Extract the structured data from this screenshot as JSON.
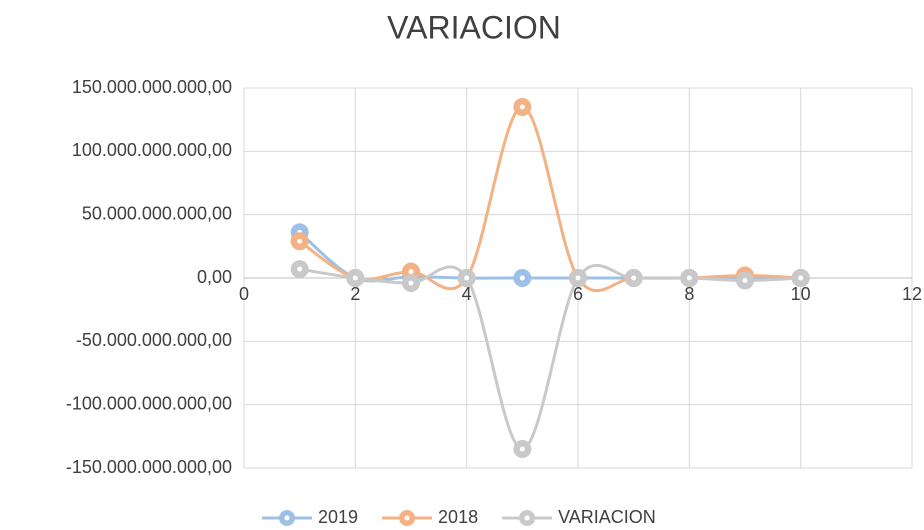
{
  "chart_data": {
    "type": "scatter",
    "title": "VARIACION",
    "smooth": true,
    "grid": true,
    "legend": "bottom",
    "xlim": [
      0,
      12
    ],
    "xticks": [
      0,
      2,
      4,
      6,
      8,
      10,
      12
    ],
    "ylim": [
      -150000000000,
      150000000000
    ],
    "yticks": [
      {
        "value": -150000000000,
        "label": "-150.000.000.000,00"
      },
      {
        "value": -100000000000,
        "label": "-100.000.000.000,00"
      },
      {
        "value": -50000000000,
        "label": "-50.000.000.000,00"
      },
      {
        "value": 0,
        "label": "0,00"
      },
      {
        "value": 50000000000,
        "label": "50.000.000.000,00"
      },
      {
        "value": 100000000000,
        "label": "100.000.000.000,00"
      },
      {
        "value": 150000000000,
        "label": "150.000.000.000,00"
      }
    ],
    "x": [
      1,
      2,
      3,
      4,
      5,
      6,
      7,
      8,
      9,
      10
    ],
    "series": [
      {
        "name": "2019",
        "color": "#9dc1e6",
        "values": [
          36000000000,
          0,
          1000000000,
          0,
          0,
          0,
          0,
          0,
          0,
          0
        ]
      },
      {
        "name": "2018",
        "color": "#f4b183",
        "values": [
          29000000000,
          0,
          5000000000,
          0,
          135000000000,
          0,
          0,
          0,
          2000000000,
          0
        ]
      },
      {
        "name": "VARIACION",
        "color": "#c9c9c9",
        "values": [
          7000000000,
          0,
          -4000000000,
          0,
          -135000000000,
          0,
          0,
          0,
          -2000000000,
          0
        ]
      }
    ]
  }
}
